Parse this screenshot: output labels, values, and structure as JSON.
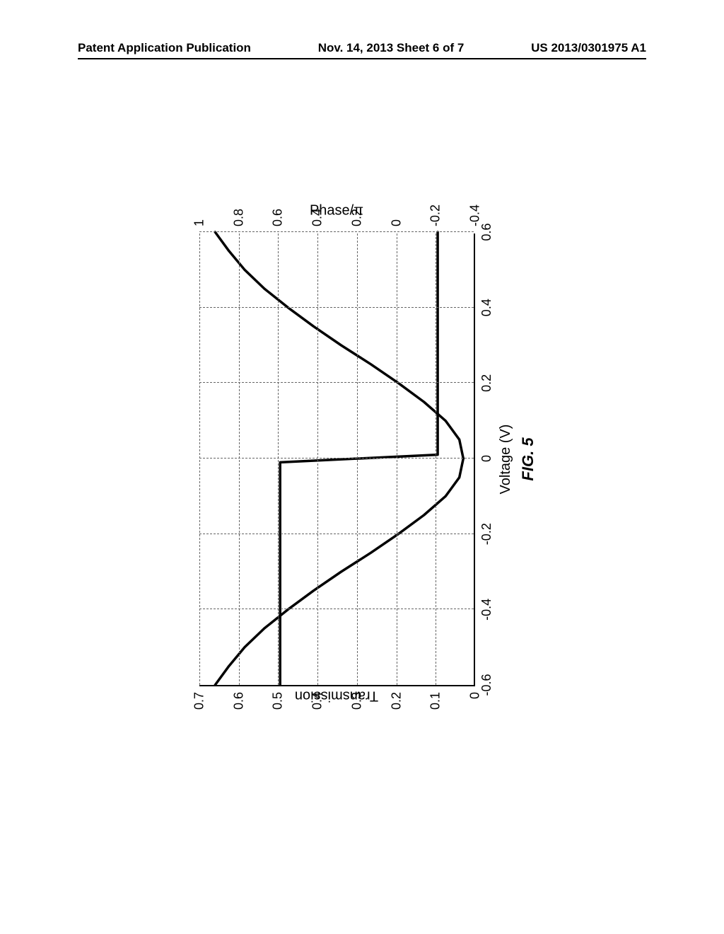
{
  "header": {
    "left": "Patent Application Publication",
    "center": "Nov. 14, 2013  Sheet 6 of 7",
    "right": "US 2013/0301975 A1"
  },
  "figure": {
    "caption": "FIG. 5",
    "type": "line",
    "xlabel": "Voltage (V)",
    "ylabel_left": "Transmission",
    "ylabel_right": "Phase/π",
    "xlim": [
      -0.6,
      0.6
    ],
    "ylim_left": [
      0,
      0.7
    ],
    "ylim_right": [
      -0.4,
      1.0
    ],
    "xticks": [
      -0.6,
      -0.4,
      -0.2,
      0,
      0.2,
      0.4,
      0.6
    ],
    "yticks_left": [
      0,
      0.1,
      0.2,
      0.3,
      0.4,
      0.5,
      0.6,
      0.7
    ],
    "yticks_right": [
      -0.4,
      -0.2,
      0,
      0.2,
      0.4,
      0.6,
      0.8,
      1
    ],
    "grid_color": "#666666",
    "background_color": "#ffffff",
    "line_color": "#000000",
    "line_width": 3.5,
    "transmission_curve": {
      "x": [
        -0.6,
        -0.55,
        -0.5,
        -0.45,
        -0.4,
        -0.35,
        -0.3,
        -0.25,
        -0.2,
        -0.15,
        -0.1,
        -0.05,
        0.0,
        0.05,
        0.1,
        0.15,
        0.2,
        0.25,
        0.3,
        0.35,
        0.4,
        0.45,
        0.5,
        0.55,
        0.6
      ],
      "y": [
        0.66,
        0.625,
        0.585,
        0.535,
        0.475,
        0.41,
        0.34,
        0.265,
        0.195,
        0.13,
        0.075,
        0.04,
        0.03,
        0.04,
        0.075,
        0.13,
        0.195,
        0.265,
        0.34,
        0.41,
        0.475,
        0.535,
        0.585,
        0.625,
        0.66
      ]
    },
    "phase_curve": {
      "x": [
        -0.6,
        -0.01,
        0.01,
        0.6
      ],
      "y": [
        0.59,
        0.59,
        -0.21,
        -0.21
      ]
    },
    "axis_fontsize": 18,
    "label_fontsize": 20,
    "caption_fontsize": 22
  }
}
